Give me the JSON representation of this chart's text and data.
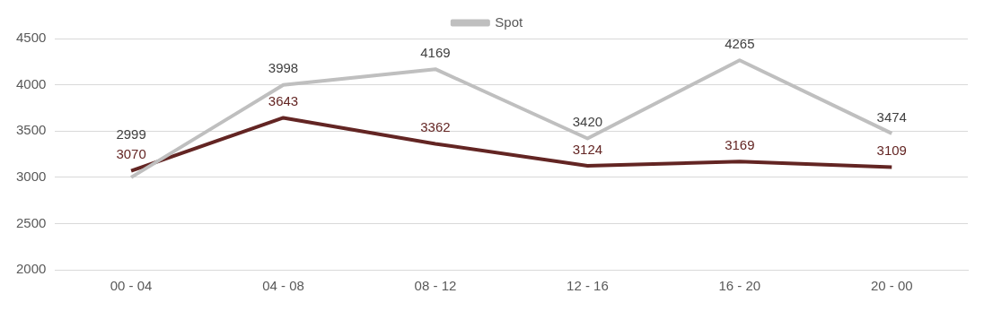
{
  "chart_data": {
    "type": "line",
    "categories": [
      "00 - 04",
      "04 - 08",
      "08 - 12",
      "12 - 16",
      "16 - 20",
      "20 - 00"
    ],
    "series": [
      {
        "name": "Spot",
        "color": "#bfbfbf",
        "values": [
          2999,
          3998,
          4169,
          3420,
          4265,
          3474
        ]
      },
      {
        "color": "#632523",
        "values": [
          3070,
          3643,
          3362,
          3124,
          3169,
          3109
        ]
      }
    ],
    "ylim": [
      2000,
      4500
    ],
    "yticks": [
      2000,
      2500,
      3000,
      3500,
      4000,
      4500
    ],
    "grid": "y",
    "legend": "top",
    "data_labels": true,
    "marker": "none",
    "line_style": "solid"
  }
}
